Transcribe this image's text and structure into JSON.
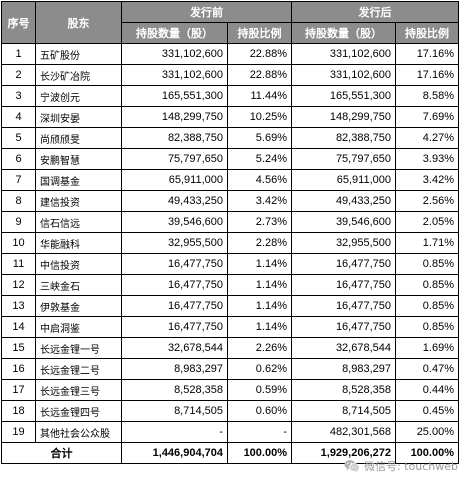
{
  "header": {
    "seq": "序号",
    "holder": "股东",
    "before": "发行前",
    "after": "发行后",
    "shares": "持股数量（股）",
    "ratio": "持股比例"
  },
  "rows": [
    {
      "no": "1",
      "name": "五矿股份",
      "b_shares": "331,102,600",
      "b_ratio": "22.88%",
      "a_shares": "331,102,600",
      "a_ratio": "17.16%"
    },
    {
      "no": "2",
      "name": "长沙矿冶院",
      "b_shares": "331,102,600",
      "b_ratio": "22.88%",
      "a_shares": "331,102,600",
      "a_ratio": "17.16%"
    },
    {
      "no": "3",
      "name": "宁波创元",
      "b_shares": "165,551,300",
      "b_ratio": "11.44%",
      "a_shares": "165,551,300",
      "a_ratio": "8.58%"
    },
    {
      "no": "4",
      "name": "深圳安晏",
      "b_shares": "148,299,750",
      "b_ratio": "10.25%",
      "a_shares": "148,299,750",
      "a_ratio": "7.69%"
    },
    {
      "no": "5",
      "name": "尚颀颀旻",
      "b_shares": "82,388,750",
      "b_ratio": "5.69%",
      "a_shares": "82,388,750",
      "a_ratio": "4.27%"
    },
    {
      "no": "6",
      "name": "安鹏智慧",
      "b_shares": "75,797,650",
      "b_ratio": "5.24%",
      "a_shares": "75,797,650",
      "a_ratio": "3.93%"
    },
    {
      "no": "7",
      "name": "国调基金",
      "b_shares": "65,911,000",
      "b_ratio": "4.56%",
      "a_shares": "65,911,000",
      "a_ratio": "3.42%"
    },
    {
      "no": "8",
      "name": "建信投资",
      "b_shares": "49,433,250",
      "b_ratio": "3.42%",
      "a_shares": "49,433,250",
      "a_ratio": "2.56%"
    },
    {
      "no": "9",
      "name": "信石信远",
      "b_shares": "39,546,600",
      "b_ratio": "2.73%",
      "a_shares": "39,546,600",
      "a_ratio": "2.05%"
    },
    {
      "no": "10",
      "name": "华能融科",
      "b_shares": "32,955,500",
      "b_ratio": "2.28%",
      "a_shares": "32,955,500",
      "a_ratio": "1.71%"
    },
    {
      "no": "11",
      "name": "中信投资",
      "b_shares": "16,477,750",
      "b_ratio": "1.14%",
      "a_shares": "16,477,750",
      "a_ratio": "0.85%"
    },
    {
      "no": "12",
      "name": "三峡金石",
      "b_shares": "16,477,750",
      "b_ratio": "1.14%",
      "a_shares": "16,477,750",
      "a_ratio": "0.85%"
    },
    {
      "no": "13",
      "name": "伊敦基金",
      "b_shares": "16,477,750",
      "b_ratio": "1.14%",
      "a_shares": "16,477,750",
      "a_ratio": "0.85%"
    },
    {
      "no": "14",
      "name": "中启洞鉴",
      "b_shares": "16,477,750",
      "b_ratio": "1.14%",
      "a_shares": "16,477,750",
      "a_ratio": "0.85%"
    },
    {
      "no": "15",
      "name": "长远金锂一号",
      "b_shares": "32,678,544",
      "b_ratio": "2.26%",
      "a_shares": "32,678,544",
      "a_ratio": "1.69%"
    },
    {
      "no": "16",
      "name": "长远金锂二号",
      "b_shares": "8,983,297",
      "b_ratio": "0.62%",
      "a_shares": "8,983,297",
      "a_ratio": "0.47%"
    },
    {
      "no": "17",
      "name": "长远金锂三号",
      "b_shares": "8,528,358",
      "b_ratio": "0.59%",
      "a_shares": "8,528,358",
      "a_ratio": "0.44%"
    },
    {
      "no": "18",
      "name": "长远金锂四号",
      "b_shares": "8,714,505",
      "b_ratio": "0.60%",
      "a_shares": "8,714,505",
      "a_ratio": "0.45%"
    },
    {
      "no": "19",
      "name": "其他社会公众股",
      "b_shares": "-",
      "b_ratio": "-",
      "a_shares": "482,301,568",
      "a_ratio": "25.00%"
    }
  ],
  "total": {
    "label": "合计",
    "b_shares": "1,446,904,704",
    "b_ratio": "100.00%",
    "a_shares": "1,929,206,272",
    "a_ratio": "100.00%"
  },
  "watermark": {
    "icon": "wechat-icon",
    "text": "微信号: touchweb"
  }
}
